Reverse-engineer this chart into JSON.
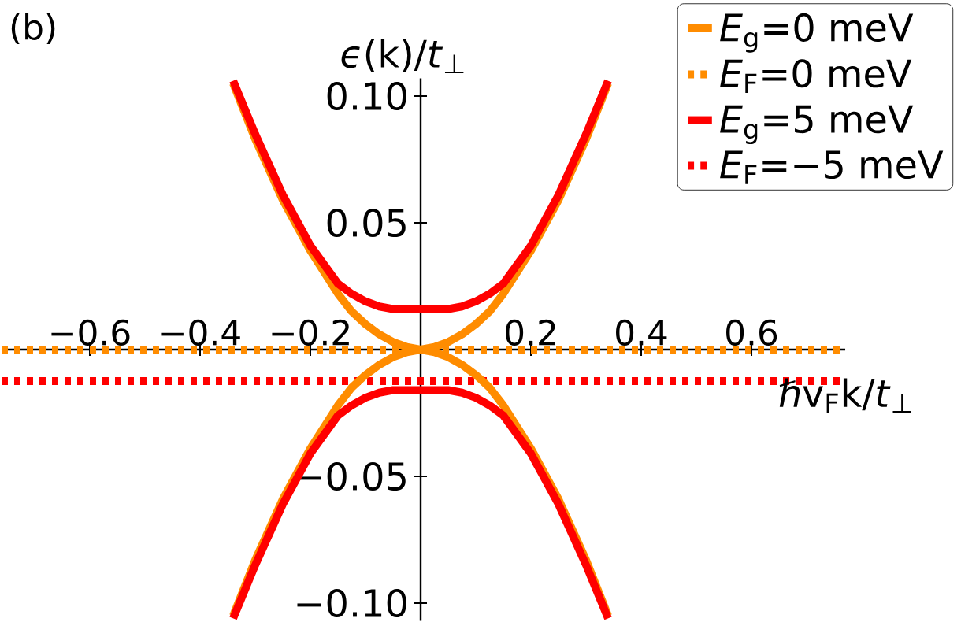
{
  "chart_data": {
    "type": "line",
    "annotations": [
      "(b)"
    ],
    "xlabel": "ℏv$_{F}$k/*t*$_{⊥}$",
    "ylabel": "*ϵ*(k)/*t*$_{⊥}$",
    "xlim": [
      -0.76,
      0.77
    ],
    "ylim": [
      -0.107,
      0.107
    ],
    "xticks": [
      {
        "value": -0.6,
        "label": "−0.6"
      },
      {
        "value": -0.4,
        "label": "−0.4"
      },
      {
        "value": -0.2,
        "label": "−0.2"
      },
      {
        "value": 0.2,
        "label": "0.2"
      },
      {
        "value": 0.4,
        "label": "0.4"
      },
      {
        "value": 0.6,
        "label": "0.6"
      }
    ],
    "yticks": [
      {
        "value": -0.1,
        "label": "−0.10"
      },
      {
        "value": -0.05,
        "label": "−0.05"
      },
      {
        "value": 0.05,
        "label": "0.05"
      },
      {
        "value": 0.1,
        "label": "0.10"
      }
    ],
    "legend": "top right",
    "series": [
      {
        "name": "*E*$_{g}$=0 meV",
        "color": "#ff8c00",
        "line_style": "solid",
        "x": [
          -0.34,
          -0.3,
          -0.25,
          -0.2,
          -0.15,
          -0.125,
          -0.1,
          -0.075,
          -0.05,
          -0.025,
          0,
          0.025,
          0.05,
          0.075,
          0.1,
          0.125,
          0.15,
          0.2,
          0.25,
          0.3,
          0.34
        ],
        "values": [
          0.105,
          0.083,
          0.059,
          0.039,
          0.022,
          0.015,
          0.01,
          0.006,
          0.003,
          0.001,
          0,
          0.001,
          0.003,
          0.006,
          0.01,
          0.015,
          0.022,
          0.039,
          0.059,
          0.083,
          0.105
        ]
      },
      {
        "name": "*E*$_{F}$=0 meV",
        "color": "#ff8c00",
        "line_style": "dotted",
        "x": [
          -0.76,
          0.77
        ],
        "values": [
          0,
          0
        ]
      },
      {
        "name": "*E*$_{g}$=5 meV",
        "color": "#ff0000",
        "line_style": "solid",
        "x": [
          -0.34,
          -0.3,
          -0.25,
          -0.2,
          -0.15,
          -0.125,
          -0.1,
          -0.075,
          -0.05,
          -0.025,
          0,
          0.025,
          0.05,
          0.075,
          0.1,
          0.125,
          0.15,
          0.2,
          0.25,
          0.3,
          0.34
        ],
        "values": [
          0.106,
          0.085,
          0.061,
          0.041,
          0.026,
          0.022,
          0.019,
          0.017,
          0.016,
          0.016,
          0.016,
          0.016,
          0.016,
          0.017,
          0.019,
          0.022,
          0.026,
          0.041,
          0.061,
          0.085,
          0.106
        ]
      },
      {
        "name": "*E*$_{F}$=−5 meV",
        "color": "#ff0000",
        "line_style": "dotted",
        "x": [
          -0.76,
          0.77
        ],
        "values": [
          -0.0124,
          -0.0124
        ]
      },
      {
        "color": "#ff8c00",
        "line_style": "solid",
        "x": [
          -0.34,
          -0.3,
          -0.25,
          -0.2,
          -0.15,
          -0.125,
          -0.1,
          -0.075,
          -0.05,
          -0.025,
          0,
          0.025,
          0.05,
          0.075,
          0.1,
          0.125,
          0.15,
          0.2,
          0.25,
          0.3,
          0.34
        ],
        "values": [
          -0.105,
          -0.083,
          -0.059,
          -0.039,
          -0.022,
          -0.015,
          -0.01,
          -0.006,
          -0.003,
          -0.001,
          0,
          -0.001,
          -0.003,
          -0.006,
          -0.01,
          -0.015,
          -0.022,
          -0.039,
          -0.059,
          -0.083,
          -0.105
        ]
      },
      {
        "color": "#ff0000",
        "line_style": "solid",
        "x": [
          -0.34,
          -0.3,
          -0.25,
          -0.2,
          -0.15,
          -0.125,
          -0.1,
          -0.075,
          -0.05,
          -0.025,
          0,
          0.025,
          0.05,
          0.075,
          0.1,
          0.125,
          0.15,
          0.2,
          0.25,
          0.3,
          0.34
        ],
        "values": [
          -0.106,
          -0.085,
          -0.061,
          -0.041,
          -0.026,
          -0.022,
          -0.019,
          -0.017,
          -0.016,
          -0.016,
          -0.016,
          -0.016,
          -0.016,
          -0.017,
          -0.019,
          -0.022,
          -0.026,
          -0.041,
          -0.061,
          -0.085,
          -0.106
        ]
      }
    ]
  }
}
